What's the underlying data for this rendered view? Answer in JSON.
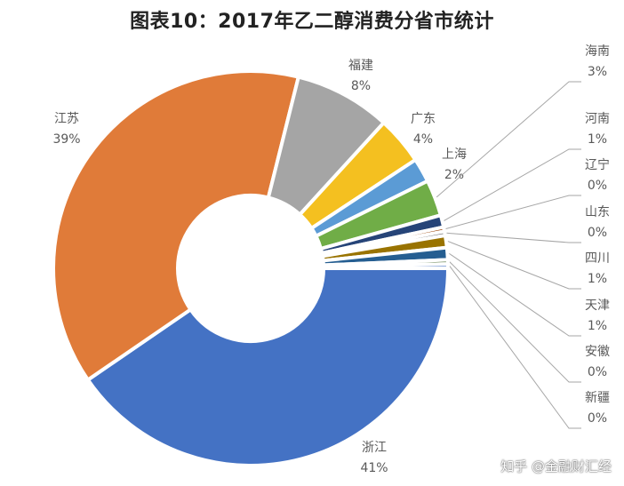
{
  "chart_data": {
    "type": "pie",
    "title": "图表10：2017年乙二醇消费分省市统计",
    "donut": true,
    "unit": "%",
    "slices": [
      {
        "label": "浙江",
        "value": 41,
        "color": "#4472c4"
      },
      {
        "label": "江苏",
        "value": 39,
        "color": "#e07b39"
      },
      {
        "label": "福建",
        "value": 8,
        "color": "#a5a5a5"
      },
      {
        "label": "广东",
        "value": 4,
        "color": "#f4c020"
      },
      {
        "label": "上海",
        "value": 2,
        "color": "#5b9bd5"
      },
      {
        "label": "海南",
        "value": 3,
        "color": "#70ad47"
      },
      {
        "label": "河南",
        "value": 1,
        "color": "#264478"
      },
      {
        "label": "辽宁",
        "value": 0,
        "color": "#9e480e"
      },
      {
        "label": "山东",
        "value": 0,
        "color": "#636363"
      },
      {
        "label": "四川",
        "value": 1,
        "color": "#997300"
      },
      {
        "label": "天津",
        "value": 1,
        "color": "#255e91"
      },
      {
        "label": "安徽",
        "value": 0,
        "color": "#43682b"
      },
      {
        "label": "新疆",
        "value": 0,
        "color": "#698ed0"
      }
    ],
    "legend": "none",
    "label_position": "outside with leader lines"
  },
  "watermark": "知乎 @金融财汇经"
}
